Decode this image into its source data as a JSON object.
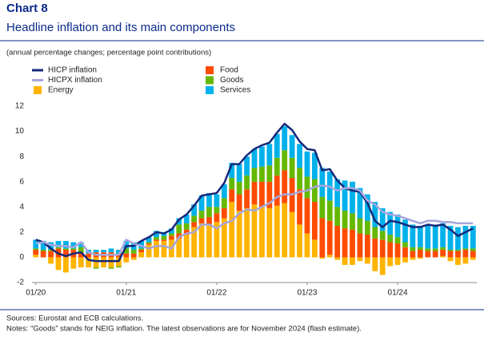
{
  "chart_data": {
    "type": "bar",
    "title": "Chart 8",
    "subtitle": "Headline inflation and its main components",
    "note": "(annual percentage changes; percentage point contributions)",
    "sources": "Sources: Eurostat and ECB calculations.",
    "notes": "Notes: “Goods” stands for NEIG inflation. The latest observations are for November 2024 (flash estimate).",
    "categories": [
      "01/20",
      null,
      null,
      null,
      null,
      null,
      null,
      null,
      null,
      null,
      null,
      null,
      "01/21",
      null,
      null,
      null,
      null,
      null,
      null,
      null,
      null,
      null,
      null,
      null,
      "01/22",
      null,
      null,
      null,
      null,
      null,
      null,
      null,
      null,
      null,
      null,
      null,
      "01/23",
      null,
      null,
      null,
      null,
      null,
      null,
      null,
      null,
      null,
      null,
      null,
      "01/24",
      null,
      null,
      null,
      null,
      null,
      null,
      null,
      null,
      null,
      null
    ],
    "ylim": [
      -2,
      12
    ],
    "yticks": [
      -2,
      0,
      2,
      4,
      6,
      8,
      10,
      12
    ],
    "grid": false,
    "series": [
      {
        "name": "HICP inflation",
        "type": "line",
        "color": "#14287a",
        "values": [
          1.4,
          1.2,
          0.7,
          0.3,
          0.1,
          0.3,
          0.4,
          -0.2,
          -0.3,
          -0.3,
          -0.3,
          -0.3,
          0.9,
          0.9,
          1.3,
          1.6,
          2.0,
          1.9,
          2.2,
          3.0,
          3.4,
          4.1,
          4.9,
          5.0,
          5.1,
          5.9,
          7.4,
          7.4,
          8.1,
          8.6,
          8.9,
          9.1,
          9.9,
          10.6,
          10.1,
          9.2,
          8.6,
          8.5,
          6.9,
          7.0,
          6.1,
          5.5,
          5.3,
          5.2,
          4.3,
          2.9,
          2.4,
          2.9,
          2.8,
          2.6,
          2.4,
          2.4,
          2.6,
          2.5,
          2.6,
          2.2,
          1.7,
          2.0,
          2.3
        ]
      },
      {
        "name": "HICPX inflation",
        "type": "line",
        "color": "#a6a6dc",
        "values": [
          1.1,
          1.2,
          1.0,
          0.9,
          0.9,
          0.8,
          1.2,
          0.4,
          0.2,
          0.2,
          0.2,
          0.2,
          1.4,
          1.1,
          0.9,
          0.7,
          0.9,
          0.9,
          0.7,
          1.6,
          1.9,
          2.0,
          2.6,
          2.6,
          2.3,
          2.7,
          2.9,
          3.5,
          3.8,
          3.7,
          4.0,
          4.3,
          4.8,
          5.0,
          5.0,
          5.2,
          5.3,
          5.6,
          5.7,
          5.6,
          5.3,
          5.5,
          5.5,
          5.3,
          4.5,
          4.2,
          3.6,
          3.4,
          3.3,
          3.1,
          2.9,
          2.7,
          2.9,
          2.9,
          2.8,
          2.8,
          2.7,
          2.7,
          2.7
        ]
      },
      {
        "name": "Energy",
        "type": "bar",
        "color": "#ffb400",
        "values": [
          0.2,
          0.0,
          -0.5,
          -1.0,
          -1.2,
          -0.9,
          -0.8,
          -0.8,
          -0.8,
          -0.8,
          -0.8,
          -0.7,
          -0.4,
          -0.2,
          0.4,
          1.0,
          1.3,
          1.3,
          1.4,
          1.5,
          1.8,
          2.4,
          2.7,
          2.6,
          2.8,
          3.1,
          4.4,
          3.7,
          3.9,
          4.2,
          4.0,
          3.9,
          4.1,
          4.3,
          3.6,
          2.6,
          1.9,
          1.4,
          -0.1,
          0.2,
          -0.2,
          -0.6,
          -0.6,
          -0.3,
          -0.5,
          -1.1,
          -1.4,
          -0.7,
          -0.6,
          -0.4,
          -0.2,
          -0.1,
          0.0,
          0.0,
          0.1,
          -0.3,
          -0.6,
          -0.5,
          -0.2
        ]
      },
      {
        "name": "Food",
        "type": "bar",
        "color": "#ff4b00",
        "values": [
          0.4,
          0.5,
          0.5,
          0.7,
          0.6,
          0.6,
          0.4,
          0.3,
          0.4,
          0.4,
          0.4,
          0.3,
          0.3,
          0.3,
          0.2,
          0.1,
          0.1,
          0.1,
          0.3,
          0.4,
          0.4,
          0.4,
          0.4,
          0.6,
          0.7,
          0.8,
          1.0,
          1.3,
          1.5,
          1.8,
          2.0,
          2.1,
          2.4,
          2.6,
          2.7,
          2.8,
          2.8,
          3.0,
          3.1,
          2.7,
          2.5,
          2.3,
          2.2,
          1.9,
          1.8,
          1.5,
          1.4,
          1.2,
          1.1,
          0.8,
          0.5,
          0.6,
          0.5,
          0.5,
          0.5,
          0.5,
          0.5,
          0.6,
          0.5
        ]
      },
      {
        "name": "Goods",
        "type": "bar",
        "color": "#65b800",
        "values": [
          0.1,
          0.1,
          0.1,
          0.1,
          0.1,
          0.1,
          0.4,
          0.0,
          -0.1,
          0.0,
          -0.1,
          -0.1,
          0.4,
          0.3,
          0.1,
          0.1,
          0.2,
          0.3,
          0.2,
          0.7,
          0.5,
          0.5,
          0.6,
          0.8,
          0.5,
          0.8,
          0.9,
          1.0,
          1.1,
          1.1,
          1.2,
          1.3,
          1.4,
          1.6,
          1.6,
          1.7,
          1.7,
          1.8,
          1.7,
          1.6,
          1.5,
          1.4,
          1.3,
          1.2,
          1.1,
          0.9,
          0.7,
          0.6,
          0.5,
          0.4,
          0.3,
          0.2,
          0.2,
          0.2,
          0.2,
          0.1,
          0.1,
          0.1,
          0.2
        ]
      },
      {
        "name": "Services",
        "type": "bar",
        "color": "#00b1ea",
        "values": [
          0.7,
          0.7,
          0.6,
          0.5,
          0.6,
          0.5,
          0.4,
          0.3,
          0.2,
          0.2,
          0.3,
          0.3,
          0.6,
          0.6,
          0.6,
          0.4,
          0.5,
          0.3,
          0.4,
          0.5,
          0.7,
          0.9,
          1.2,
          1.1,
          1.0,
          1.1,
          1.2,
          1.4,
          1.5,
          1.5,
          1.6,
          1.7,
          1.9,
          1.9,
          1.8,
          1.9,
          2.0,
          2.1,
          2.3,
          2.3,
          2.2,
          2.4,
          2.5,
          2.4,
          2.1,
          2.0,
          1.8,
          1.8,
          1.8,
          1.8,
          1.8,
          1.7,
          1.9,
          1.9,
          1.9,
          1.9,
          1.8,
          1.8,
          1.8
        ]
      }
    ]
  }
}
